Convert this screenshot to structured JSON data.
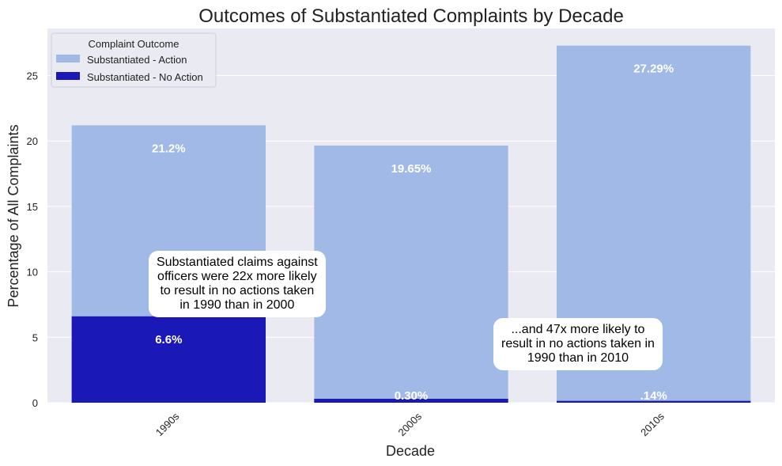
{
  "chart_data": {
    "type": "bar",
    "stacked": true,
    "title": "Outcomes of Substantiated Complaints by Decade",
    "xlabel": "Decade",
    "ylabel": "Percentage of All Complaints",
    "categories": [
      "1990s",
      "2000s",
      "2010s"
    ],
    "yticks": [
      0,
      5,
      10,
      15,
      20,
      25
    ],
    "ylim": [
      0,
      28.6
    ],
    "grid": true,
    "legend_title": "Complaint Outcome",
    "legend_position": "top-left",
    "series": [
      {
        "name": "Substantiated - Action",
        "values": [
          21.2,
          19.65,
          27.29
        ],
        "labels": [
          "21.2%",
          "19.65%",
          "27.29%"
        ],
        "color": "#a1b9e6"
      },
      {
        "name": "Substantiated - No Action",
        "values": [
          6.6,
          0.3,
          0.14
        ],
        "labels": [
          "6.6%",
          "0.30%",
          ".14%"
        ],
        "color": "#1a18b6"
      }
    ],
    "annotations": [
      "Substantiated claims against\nofficers were 22x more likely\nto result in no actions taken\nin 1990 than in 2000",
      "...and 47x more likely to\nresult in no actions taken in\n1990 than in 2010"
    ],
    "background_color": "#eaeaf2",
    "grid_color": "#ffffff"
  }
}
